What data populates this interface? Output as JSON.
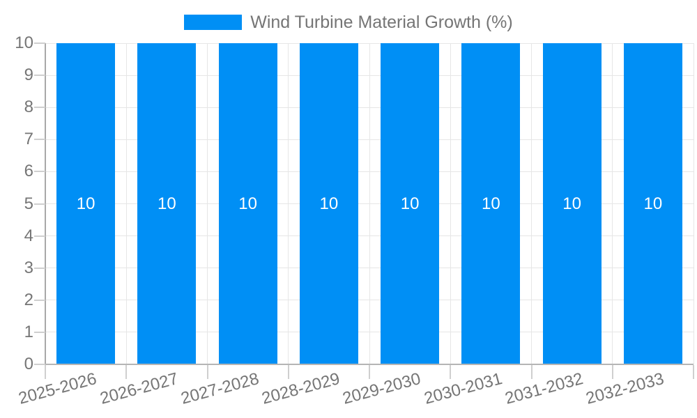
{
  "legend": {
    "label": "Wind Turbine Material Growth (%)"
  },
  "chart_data": {
    "type": "bar",
    "title": "",
    "xlabel": "",
    "ylabel": "",
    "categories": [
      "2025-2026",
      "2026-2027",
      "2027-2028",
      "2028-2029",
      "2029-2030",
      "2030-2031",
      "2031-2032",
      "2032-2033"
    ],
    "series": [
      {
        "name": "Wind Turbine Material Growth (%)",
        "values": [
          10,
          10,
          10,
          10,
          10,
          10,
          10,
          10
        ]
      }
    ],
    "value_labels_shown": true,
    "ylim": [
      0,
      10
    ],
    "y_ticks": [
      0,
      1,
      2,
      3,
      4,
      5,
      6,
      7,
      8,
      9,
      10
    ],
    "grid": true,
    "legend_position": "top-center",
    "x_label_rotation_deg": -15
  },
  "style": {
    "bar_color": "#008ff5",
    "value_label_color": "#ffffff",
    "tick_text_color": "#757575",
    "legend_text_color": "#757575",
    "grid_color": "#e6e6e6",
    "y_axis_color": "#a8a8a8",
    "x_axis_color": "#b5b5b5",
    "tick_mark_color": "#cfcfcf",
    "background_color": "#ffffff"
  }
}
